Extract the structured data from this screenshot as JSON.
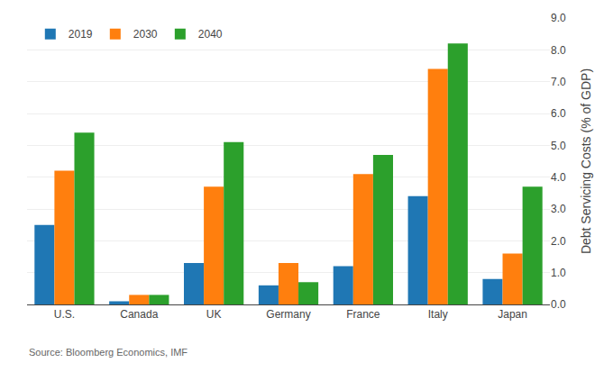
{
  "chart_data": {
    "type": "bar",
    "categories": [
      "U.S.",
      "Canada",
      "UK",
      "Germany",
      "France",
      "Italy",
      "Japan"
    ],
    "series": [
      {
        "name": "2019",
        "values": [
          2.5,
          0.1,
          1.3,
          0.6,
          1.2,
          3.4,
          0.8
        ]
      },
      {
        "name": "2030",
        "values": [
          4.2,
          0.3,
          3.7,
          1.3,
          4.1,
          7.4,
          1.6
        ]
      },
      {
        "name": "2040",
        "values": [
          5.4,
          0.3,
          5.1,
          0.7,
          4.7,
          8.2,
          3.7
        ]
      }
    ],
    "ylabel": "Debt Servicing Costs (% of GDP)",
    "ylim": [
      0,
      9.0
    ],
    "yticks": [
      {
        "value": 0,
        "label": "0.0"
      },
      {
        "value": 1,
        "label": "1.0"
      },
      {
        "value": 2,
        "label": "2.0"
      },
      {
        "value": 3,
        "label": "3.0"
      },
      {
        "value": 4,
        "label": "4.0"
      },
      {
        "value": 5,
        "label": "5.0"
      },
      {
        "value": 6,
        "label": "6.0"
      },
      {
        "value": 7,
        "label": "7.0"
      },
      {
        "value": 8,
        "label": "8.0"
      },
      {
        "value": 9,
        "label": "9.0"
      }
    ],
    "grid": true,
    "legend": "upper left",
    "annotations": [
      "Source: Bloomberg Economics, IMF"
    ]
  }
}
